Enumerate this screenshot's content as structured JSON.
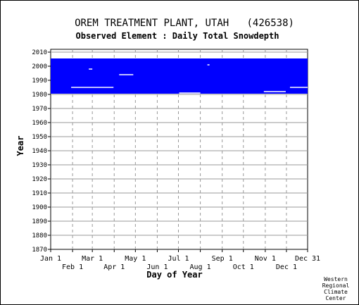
{
  "chart_data": {
    "type": "heatmap",
    "title": "OREM TREATMENT PLANT, UTAH   (426538)",
    "subtitle": "Observed Element : Daily Total Snowdepth",
    "xlabel": "Day of Year",
    "ylabel": "Year",
    "x_range_day_of_year": [
      1,
      365
    ],
    "y_range_year": [
      1870,
      2012
    ],
    "grid": true,
    "x_ticks_top": [
      {
        "label": "Jan 1",
        "day": 1
      },
      {
        "label": "Mar 1",
        "day": 60
      },
      {
        "label": "May 1",
        "day": 121
      },
      {
        "label": "Jul 1",
        "day": 182
      },
      {
        "label": "Sep 1",
        "day": 244
      },
      {
        "label": "Nov 1",
        "day": 305
      },
      {
        "label": "Dec 31",
        "day": 365
      }
    ],
    "x_ticks_bottom": [
      {
        "label": "Feb 1",
        "day": 32
      },
      {
        "label": "Apr 1",
        "day": 91
      },
      {
        "label": "Jun 1",
        "day": 152
      },
      {
        "label": "Aug 1",
        "day": 213
      },
      {
        "label": "Oct 1",
        "day": 274
      },
      {
        "label": "Dec 1",
        "day": 335
      }
    ],
    "y_ticks": [
      2010,
      2000,
      1990,
      1980,
      1970,
      1960,
      1950,
      1940,
      1930,
      1920,
      1910,
      1900,
      1890,
      1880,
      1870
    ],
    "data_coverage": {
      "series_color": "#0000ff",
      "full_period_years": [
        1981,
        2005
      ],
      "missing_day_segments": [
        {
          "year": 1985,
          "days": [
            30,
            90
          ]
        },
        {
          "year": 1994,
          "days": [
            98,
            118
          ]
        },
        {
          "year": 1998,
          "days": [
            55,
            60
          ]
        },
        {
          "year": 1982,
          "days": [
            303,
            334
          ]
        },
        {
          "year": 1985,
          "days": [
            340,
            365
          ]
        },
        {
          "year": 1981,
          "days": [
            183,
            213
          ]
        },
        {
          "year": 2001,
          "days": [
            223,
            226
          ]
        }
      ]
    }
  },
  "credit": [
    "Western",
    "Regional",
    "Climate",
    "Center"
  ]
}
